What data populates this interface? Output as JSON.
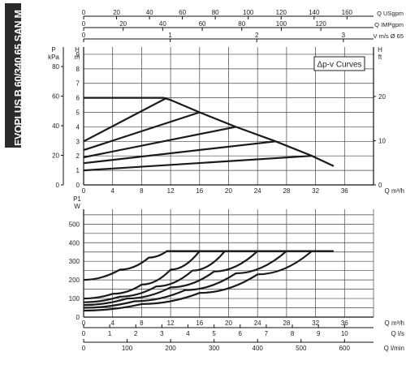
{
  "side_title": "EVOPLUS B 60/340.65 SAN M",
  "colors": {
    "curve": "#1a1a1a",
    "grid": "#444444",
    "banner": "#2b2b2b"
  },
  "chart_data": [
    {
      "type": "line",
      "name": "head_curves",
      "legend": "Δp-v Curves",
      "x_unit_label": "Q m³/h",
      "x_ticks": [
        0,
        4,
        8,
        12,
        16,
        20,
        24,
        28,
        32,
        36
      ],
      "xlim": [
        0,
        40
      ],
      "y_left_label_P": "P",
      "y_left_unit_P": "kPa",
      "y_left_label_H": "H",
      "y_left_unit_H": "m",
      "y_ticks_m": [
        0,
        1,
        2,
        3,
        4,
        5,
        6,
        7,
        8,
        9
      ],
      "y_ticks_kpa": [
        0,
        20,
        40,
        60,
        80
      ],
      "y_right_label": "H",
      "y_right_unit": "ft",
      "y_ticks_ft": [
        0,
        10,
        20
      ],
      "ylim": [
        0,
        9.5
      ],
      "top_axes": [
        {
          "label": "Q USgpm",
          "ticks": [
            "0",
            "20",
            "40",
            "60",
            "80",
            "100",
            "120",
            "140",
            "160"
          ],
          "values": [
            0,
            20,
            40,
            60,
            80,
            100,
            120,
            140,
            160
          ]
        },
        {
          "label": "Q IMPgpm",
          "ticks": [
            "0",
            "20",
            "40",
            "60",
            "80",
            "100",
            "120"
          ],
          "values": [
            0,
            20,
            40,
            60,
            80,
            100,
            120
          ]
        },
        {
          "label": "V m/s Ø 65",
          "ticks": [
            "0",
            "1",
            "2",
            "3",
            "4",
            "5"
          ],
          "values": [
            0,
            1,
            2,
            3,
            4,
            5
          ]
        }
      ],
      "series": [
        {
          "x": [
            0,
            11.5
          ],
          "y": [
            3.0,
            6.0
          ]
        },
        {
          "x": [
            0,
            16.0
          ],
          "y": [
            2.4,
            5.0
          ]
        },
        {
          "x": [
            0,
            21.0
          ],
          "y": [
            1.9,
            4.0
          ]
        },
        {
          "x": [
            0,
            26.5
          ],
          "y": [
            1.5,
            3.0
          ]
        },
        {
          "x": [
            0,
            31.5
          ],
          "y": [
            1.0,
            2.0
          ]
        },
        {
          "x": [
            0,
            11.0,
            12.0,
            16.0,
            21.0,
            26.5,
            31.5,
            34.5
          ],
          "y": [
            6.0,
            6.0,
            5.85,
            5.0,
            4.0,
            3.0,
            2.0,
            1.3
          ]
        }
      ]
    },
    {
      "type": "line",
      "name": "power_curves",
      "x_unit_label": "Q m³/h",
      "x_ticks": [
        0,
        4,
        8,
        12,
        16,
        20,
        24,
        28,
        32,
        36
      ],
      "xlim": [
        0,
        40
      ],
      "y_label": "P1",
      "y_unit": "W",
      "y_ticks": [
        0,
        100,
        200,
        300,
        400,
        500
      ],
      "ylim": [
        0,
        580
      ],
      "bottom_axes": [
        {
          "label": "Q l/s",
          "ticks": [
            "0",
            "1",
            "2",
            "3",
            "4",
            "5",
            "6",
            "7",
            "8",
            "9",
            "10"
          ],
          "values": [
            0,
            1,
            2,
            3,
            4,
            5,
            6,
            7,
            8,
            9,
            10
          ]
        },
        {
          "label": "Q l/min",
          "ticks": [
            "0",
            "100",
            "200",
            "300",
            "400",
            "500",
            "600"
          ],
          "values": [
            0,
            100,
            200,
            300,
            400,
            500,
            600
          ]
        }
      ],
      "series": [
        {
          "x": [
            0,
            5,
            9,
            11.5,
            34.5
          ],
          "y": [
            200,
            255,
            320,
            355,
            355
          ]
        },
        {
          "x": [
            0,
            4,
            8,
            12,
            16
          ],
          "y": [
            100,
            125,
            175,
            255,
            355
          ]
        },
        {
          "x": [
            0,
            5,
            10,
            15,
            19.5
          ],
          "y": [
            80,
            110,
            165,
            250,
            355
          ]
        },
        {
          "x": [
            0,
            6,
            12,
            18,
            24
          ],
          "y": [
            65,
            100,
            160,
            245,
            355
          ]
        },
        {
          "x": [
            0,
            7,
            14,
            21,
            28
          ],
          "y": [
            50,
            85,
            145,
            235,
            355
          ]
        },
        {
          "x": [
            0,
            8,
            16,
            24,
            31.5
          ],
          "y": [
            35,
            70,
            130,
            230,
            355
          ]
        }
      ]
    }
  ]
}
